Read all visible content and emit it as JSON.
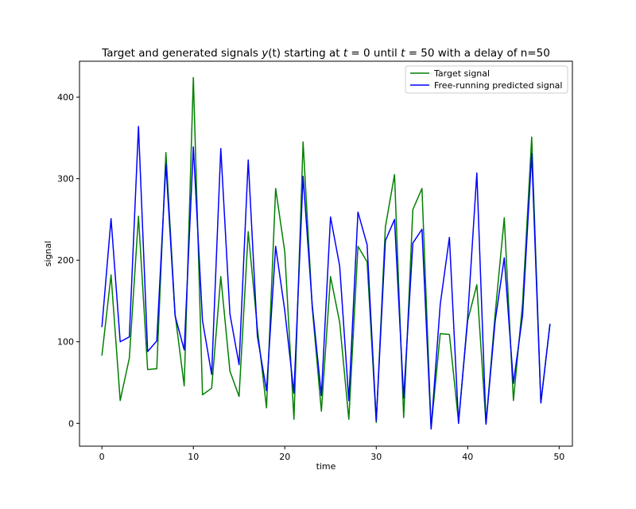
{
  "chart_data": {
    "type": "line",
    "title": "Target and generated signals y(t) starting at t = 0 until t = 50 with a delay of n=50",
    "title_parts": {
      "pre": "Target and generated signals ",
      "y": "y",
      "yt": "(t)",
      "mid1": " starting at ",
      "t1": "t",
      "eq1": " = 0 until ",
      "t2": "t",
      "eq2": " = 50 with a delay of n=50"
    },
    "xlabel": "time",
    "ylabel": "signal",
    "xlim": [
      -2.45,
      51.45
    ],
    "ylim": [
      -28,
      444
    ],
    "xticks": [
      0,
      10,
      20,
      30,
      40,
      50
    ],
    "yticks": [
      0,
      100,
      200,
      300,
      400
    ],
    "grid": false,
    "legend_position": "top-right",
    "x": [
      0,
      1,
      2,
      3,
      4,
      5,
      6,
      7,
      8,
      9,
      10,
      11,
      12,
      13,
      14,
      15,
      16,
      17,
      18,
      19,
      20,
      21,
      22,
      23,
      24,
      25,
      26,
      27,
      28,
      29,
      30,
      31,
      32,
      33,
      34,
      35,
      36,
      37,
      38,
      39,
      40,
      41,
      42,
      43,
      44,
      45,
      46,
      47,
      48,
      49
    ],
    "series": [
      {
        "name": "Target signal",
        "color": "#008000",
        "values": [
          83,
          182,
          28,
          80,
          254,
          66,
          67,
          332,
          134,
          46,
          424,
          35,
          43,
          180,
          64,
          33,
          235,
          117,
          19,
          288,
          210,
          5,
          345,
          142,
          15,
          180,
          124,
          5,
          217,
          198,
          1,
          241,
          305,
          7,
          262,
          288,
          -6,
          110,
          109,
          2,
          126,
          170,
          -1,
          134,
          252,
          28,
          147,
          351,
          25,
          122
        ]
      },
      {
        "name": "Free-running predicted signal",
        "color": "#0000ff",
        "values": [
          118,
          251,
          100,
          106,
          364,
          88,
          101,
          318,
          132,
          90,
          339,
          126,
          60,
          337,
          134,
          72,
          323,
          107,
          40,
          217,
          138,
          37,
          303,
          145,
          34,
          253,
          193,
          28,
          259,
          219,
          3,
          224,
          250,
          31,
          221,
          238,
          -7,
          146,
          228,
          0,
          130,
          307,
          -1,
          125,
          203,
          49,
          132,
          331,
          25,
          122
        ]
      }
    ]
  }
}
